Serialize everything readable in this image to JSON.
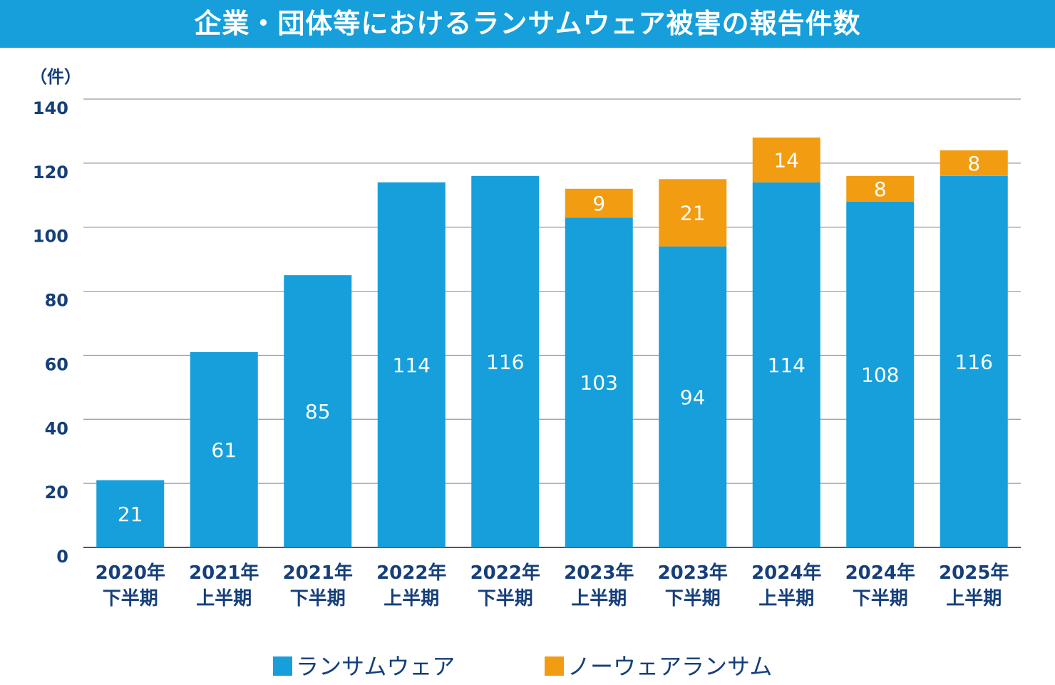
{
  "chart_data": {
    "type": "bar",
    "stacked": true,
    "title": "企業・団体等におけるランサムウェア被害の報告件数",
    "ylabel": "（件）",
    "ylim": [
      0,
      140
    ],
    "yticks": [
      0,
      20,
      40,
      60,
      80,
      100,
      120,
      140
    ],
    "grid": true,
    "legend_position": "bottom",
    "categories": [
      [
        "2020年",
        "下半期"
      ],
      [
        "2021年",
        "上半期"
      ],
      [
        "2021年",
        "下半期"
      ],
      [
        "2022年",
        "上半期"
      ],
      [
        "2022年",
        "下半期"
      ],
      [
        "2023年",
        "上半期"
      ],
      [
        "2023年",
        "下半期"
      ],
      [
        "2024年",
        "上半期"
      ],
      [
        "2024年",
        "下半期"
      ],
      [
        "2025年",
        "上半期"
      ]
    ],
    "series": [
      {
        "name": "ランサムウェア",
        "color": "#169fdb",
        "values": [
          21,
          61,
          85,
          114,
          116,
          103,
          94,
          114,
          108,
          116
        ]
      },
      {
        "name": "ノーウェアランサム",
        "color": "#f29c12",
        "values": [
          null,
          null,
          null,
          null,
          null,
          9,
          21,
          14,
          8,
          8
        ]
      }
    ]
  }
}
